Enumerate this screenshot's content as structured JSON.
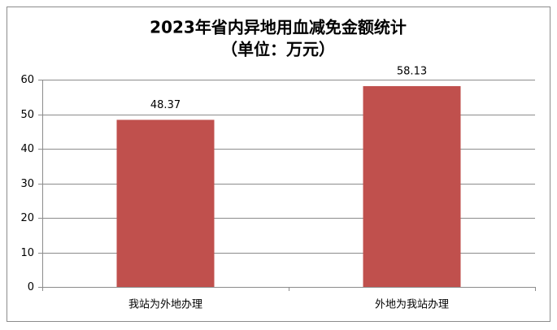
{
  "chart_data": {
    "type": "bar",
    "title": "2023年省内异地用血减免金额统计",
    "subtitle": "（单位：万元）",
    "categories": [
      "我站为外地办理",
      "外地为我站办理"
    ],
    "values": [
      48.37,
      58.13
    ],
    "color": "#c0504d",
    "ylim": [
      0,
      60
    ],
    "yticks": [
      0,
      10,
      20,
      30,
      40,
      50,
      60
    ],
    "grid": true
  }
}
